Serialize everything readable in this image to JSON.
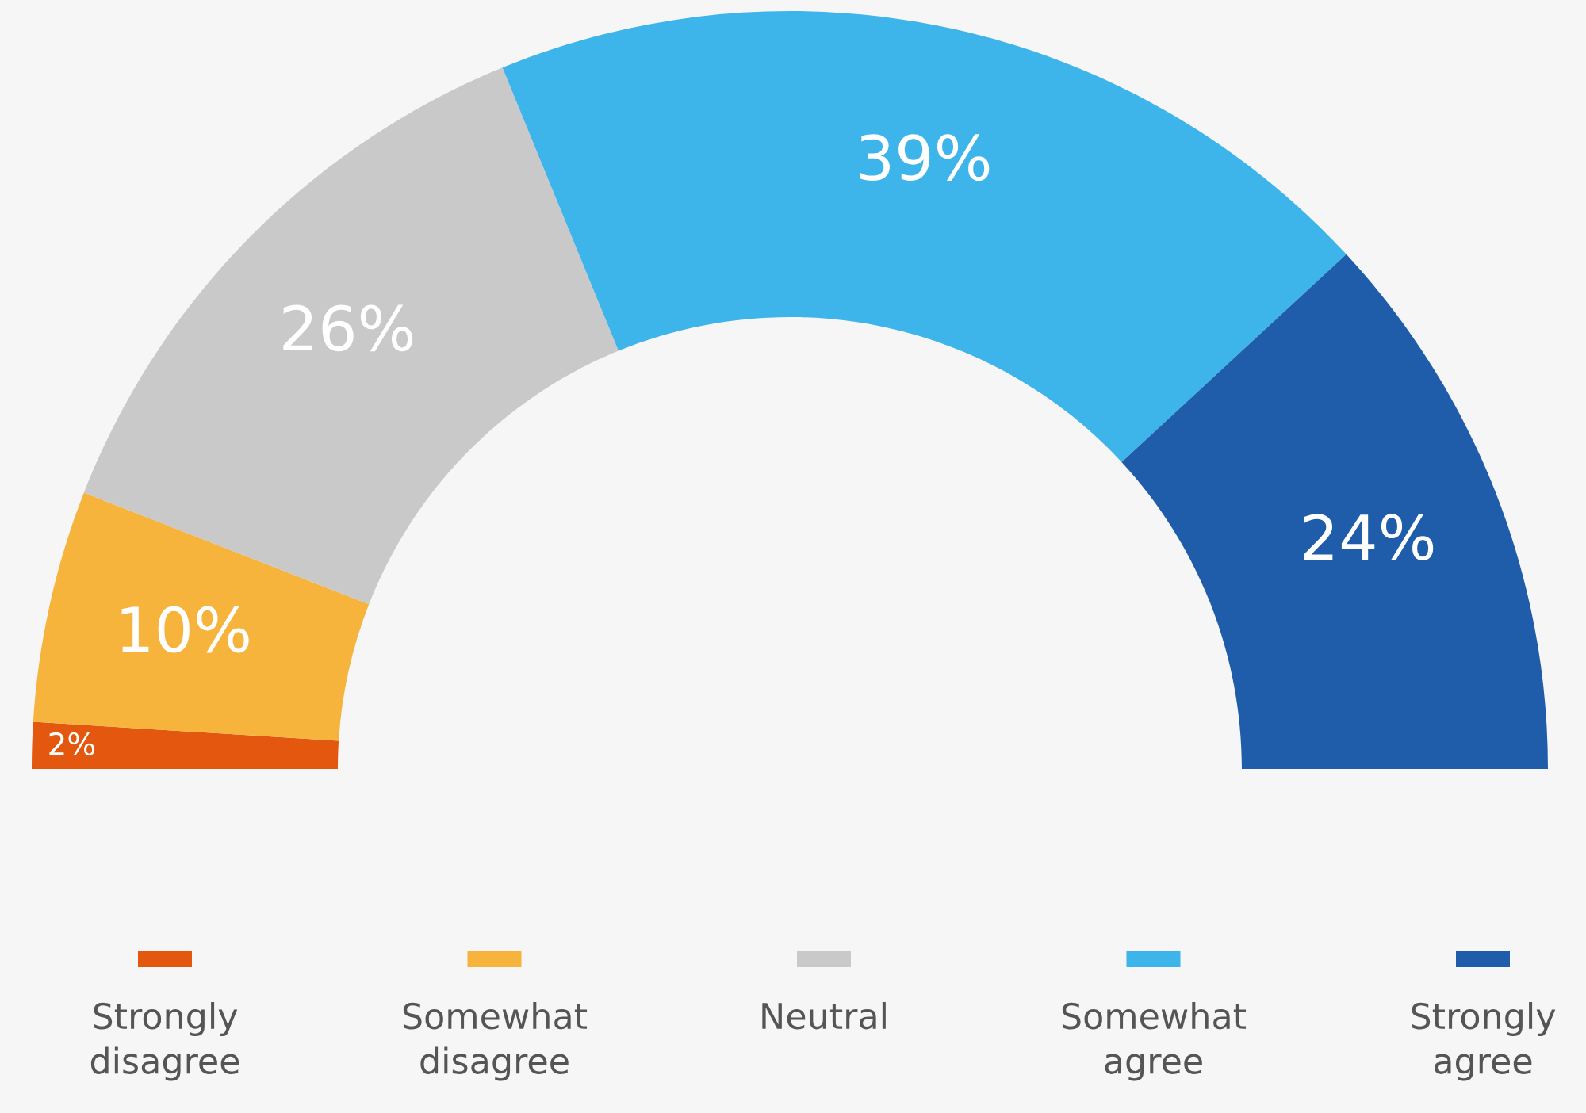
{
  "chart_data": {
    "type": "donut",
    "categories": [
      "Strongly disagree",
      "Somewhat disagree",
      "Neutral",
      "Somewhat agree",
      "Strongly agree"
    ],
    "values": [
      2,
      10,
      26,
      39,
      24
    ],
    "colors": [
      "#e4570f",
      "#f6b43c",
      "#c9c9c9",
      "#3db4ea",
      "#1f5dab"
    ],
    "value_labels": [
      "2%",
      "10%",
      "26%",
      "39%",
      "24%"
    ],
    "legend": "bottom"
  }
}
